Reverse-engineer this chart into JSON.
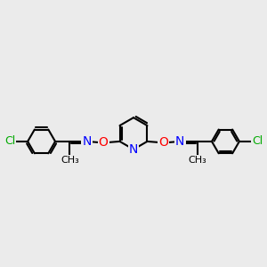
{
  "bg_color": "#ebebeb",
  "bond_color": "#000000",
  "bond_width": 1.5,
  "atom_colors": {
    "C": "#000000",
    "N": "#0000ff",
    "O": "#ff0000",
    "Cl": "#00aa00"
  },
  "font_size": 9,
  "fig_size": [
    3.0,
    3.0
  ],
  "dpi": 100,
  "xlim": [
    0,
    10
  ],
  "ylim": [
    2,
    8
  ]
}
